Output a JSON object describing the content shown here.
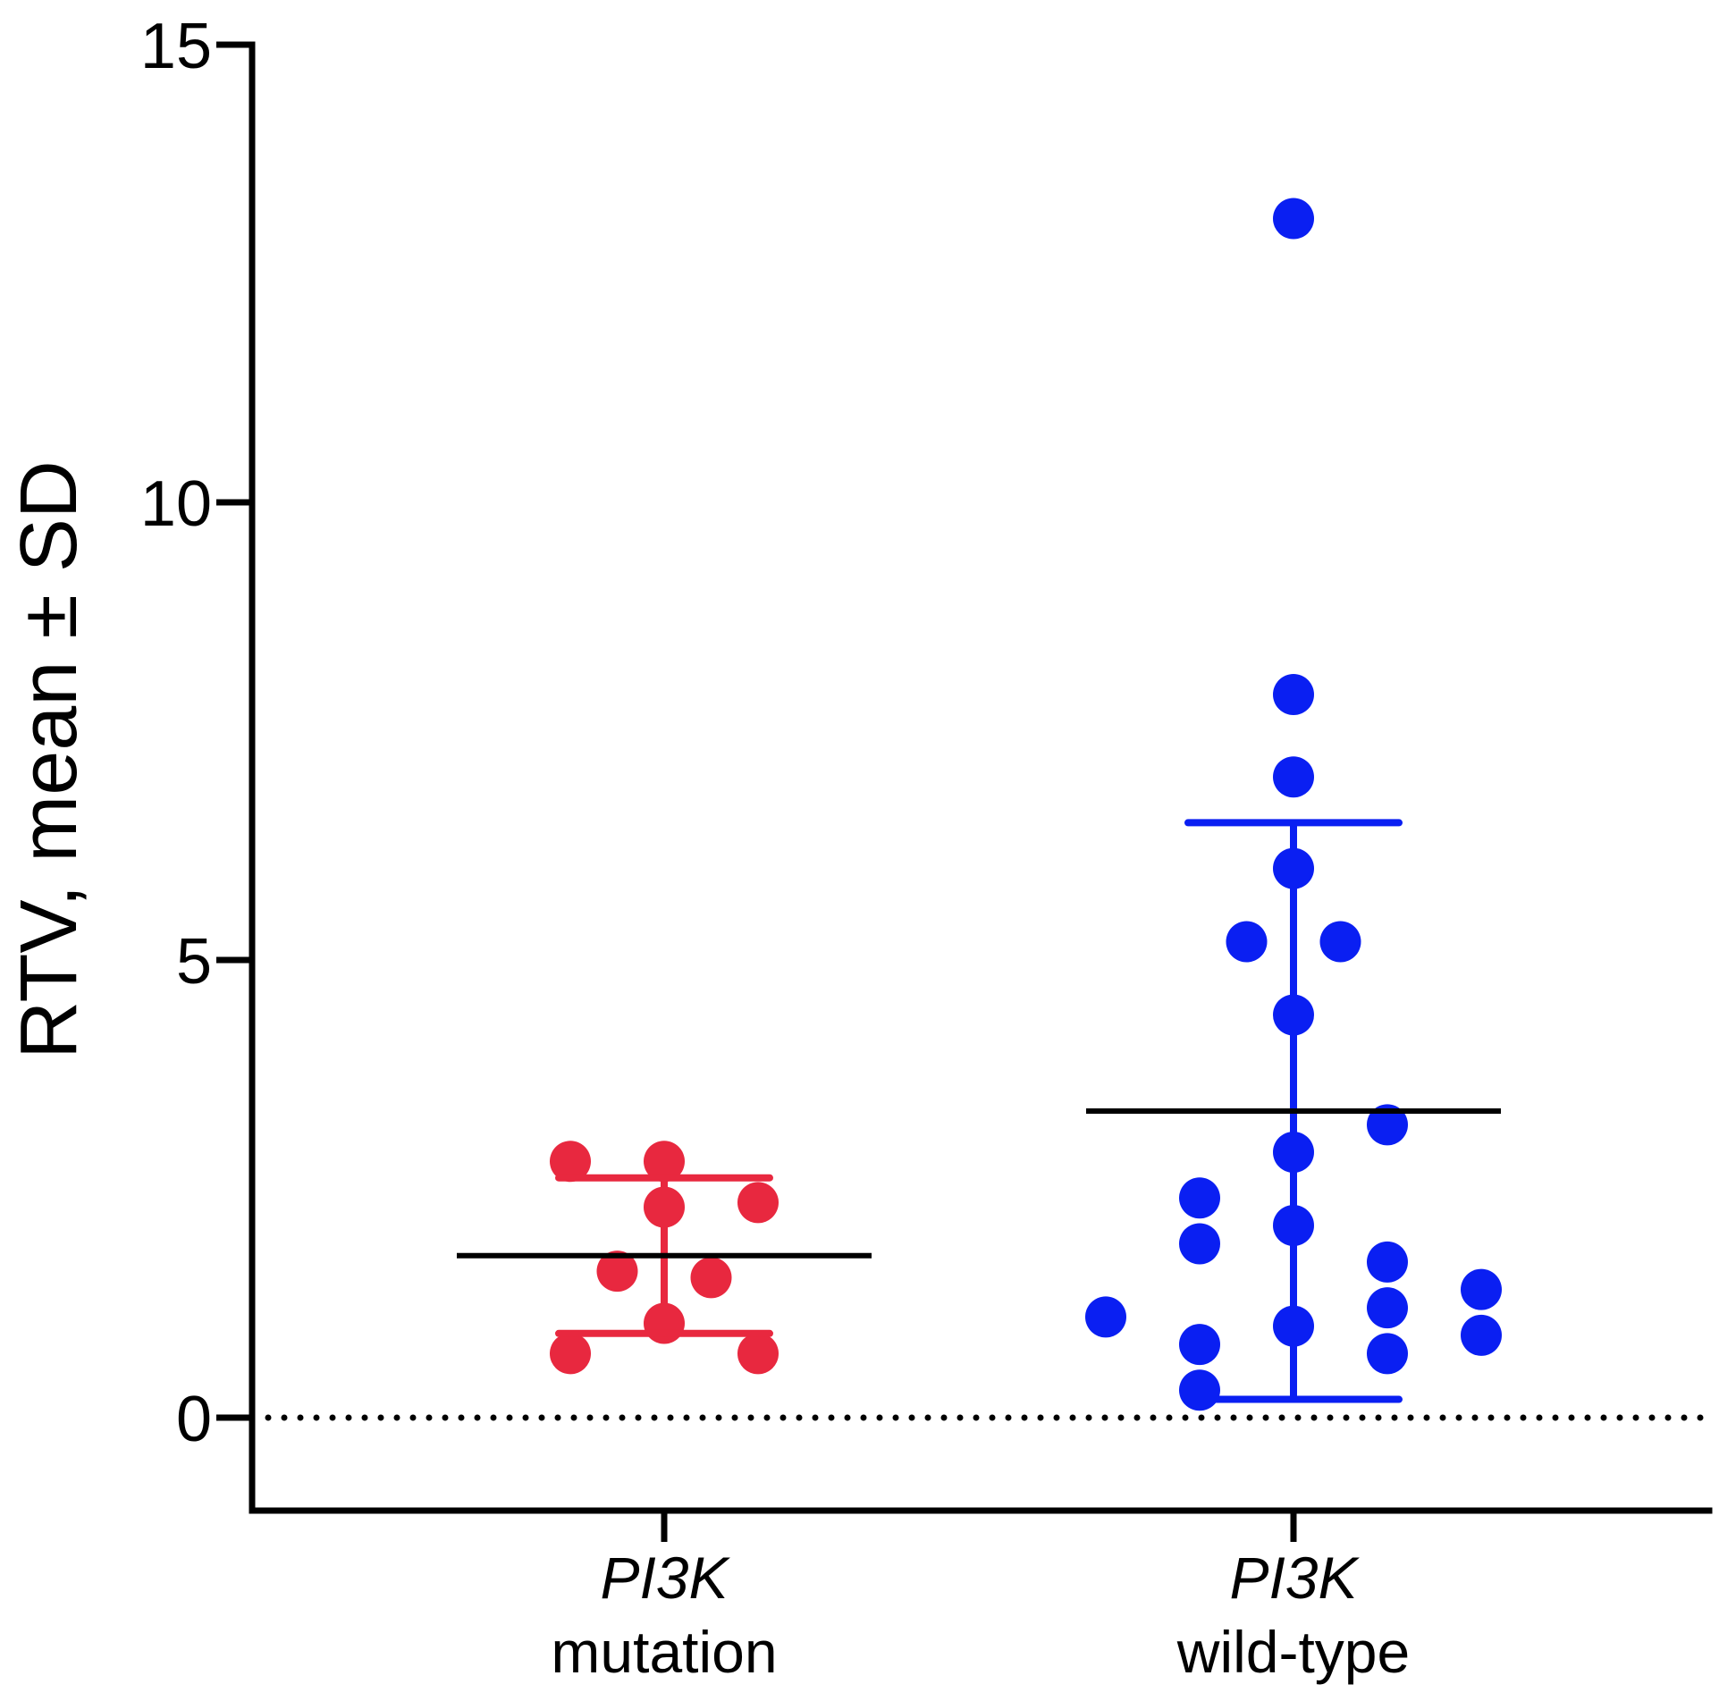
{
  "chart_data": {
    "type": "scatter",
    "ylabel": "RTV, mean ± SD",
    "xlabel": "",
    "ylim": [
      -1,
      15
    ],
    "yticks": [
      0,
      5,
      10,
      15
    ],
    "ytick_labels": [
      "0",
      "5",
      "10",
      "15"
    ],
    "reference_line": {
      "y": 0,
      "style": "dotted"
    },
    "grid": false,
    "legend": "none",
    "categories": [
      {
        "line1": "PI3K",
        "line2": "mutation"
      },
      {
        "line1": "PI3K",
        "line2": "wild-type"
      }
    ],
    "series": [
      {
        "category_index": 0,
        "color": "#e8283f",
        "mean": 1.77,
        "sd_low": 0.92,
        "sd_high": 2.62,
        "points": [
          {
            "offset": -1,
            "y": 2.8
          },
          {
            "offset": 0,
            "y": 2.8
          },
          {
            "offset": 1,
            "y": 2.35
          },
          {
            "offset": 0,
            "y": 2.3
          },
          {
            "offset": -0.5,
            "y": 1.6
          },
          {
            "offset": 0.5,
            "y": 1.53
          },
          {
            "offset": 0,
            "y": 1.03
          },
          {
            "offset": -1,
            "y": 0.7
          },
          {
            "offset": 1,
            "y": 0.7
          }
        ]
      },
      {
        "category_index": 1,
        "color": "#0a1ff2",
        "mean": 3.35,
        "sd_low": 0.2,
        "sd_high": 6.5,
        "points": [
          {
            "offset": 0,
            "y": 13.1
          },
          {
            "offset": 0,
            "y": 7.9
          },
          {
            "offset": 0,
            "y": 7.0
          },
          {
            "offset": 0,
            "y": 6.0
          },
          {
            "offset": -0.5,
            "y": 5.2
          },
          {
            "offset": 0.5,
            "y": 5.2
          },
          {
            "offset": 0,
            "y": 4.4
          },
          {
            "offset": 1,
            "y": 3.2
          },
          {
            "offset": 0,
            "y": 2.9
          },
          {
            "offset": -1,
            "y": 2.4
          },
          {
            "offset": 0,
            "y": 2.1
          },
          {
            "offset": -1,
            "y": 1.9
          },
          {
            "offset": 1,
            "y": 1.7
          },
          {
            "offset": 2,
            "y": 1.4
          },
          {
            "offset": 1,
            "y": 1.2
          },
          {
            "offset": -2,
            "y": 1.1
          },
          {
            "offset": 0,
            "y": 1.0
          },
          {
            "offset": 2,
            "y": 0.9
          },
          {
            "offset": -1,
            "y": 0.8
          },
          {
            "offset": 1,
            "y": 0.7
          },
          {
            "offset": -1,
            "y": 0.3
          }
        ]
      }
    ]
  }
}
